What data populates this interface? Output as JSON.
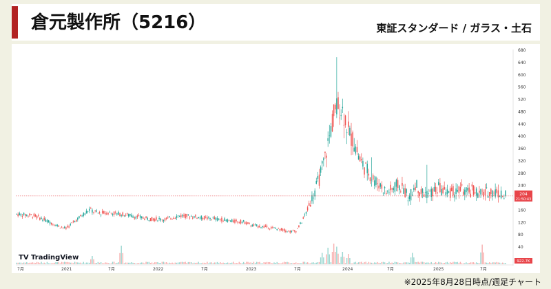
{
  "header": {
    "title": "倉元製作所（5216）",
    "market": "東証スタンダード / ガラス・土石"
  },
  "footer": {
    "note": "※2025年8月28日時点/週足チャート"
  },
  "watermark": {
    "label": "TradingView"
  },
  "colors": {
    "up": "#26a69a",
    "down": "#ef5350",
    "accent": "#b22222",
    "price_tag": "#e8454a"
  },
  "chart_data": {
    "type": "candlestick",
    "title": "",
    "xlabel": "",
    "ylabel": "",
    "ylim": [
      0,
      680
    ],
    "yticks": [
      680,
      640,
      600,
      560,
      520,
      480,
      440,
      400,
      360,
      320,
      280,
      240,
      200,
      160,
      120,
      80,
      40
    ],
    "x_tick_labels": [
      "7月",
      "2021",
      "7月",
      "2022",
      "7月",
      "2023",
      "7月",
      "2024",
      "7月",
      "2025",
      "7月"
    ],
    "last_price": {
      "value": 204,
      "countdown": "21:50:43"
    },
    "volume_label": "922.7K",
    "grid": false,
    "weeks": 264,
    "anchors": [
      [
        0,
        145
      ],
      [
        12,
        140
      ],
      [
        20,
        125
      ],
      [
        28,
        108
      ],
      [
        34,
        98
      ],
      [
        42,
        130
      ],
      [
        50,
        160
      ],
      [
        56,
        148
      ],
      [
        64,
        150
      ],
      [
        76,
        142
      ],
      [
        90,
        130
      ],
      [
        102,
        128
      ],
      [
        112,
        140
      ],
      [
        120,
        138
      ],
      [
        130,
        132
      ],
      [
        140,
        128
      ],
      [
        148,
        122
      ],
      [
        156,
        120
      ],
      [
        162,
        108
      ],
      [
        172,
        103
      ],
      [
        182,
        95
      ],
      [
        188,
        88
      ],
      [
        192,
        90
      ],
      [
        196,
        120
      ],
      [
        200,
        160
      ],
      [
        204,
        210
      ],
      [
        208,
        260
      ],
      [
        212,
        330
      ],
      [
        216,
        420
      ],
      [
        218,
        470
      ],
      [
        222,
        500
      ],
      [
        226,
        460
      ],
      [
        228,
        410
      ],
      [
        232,
        380
      ],
      [
        236,
        320
      ],
      [
        242,
        280
      ],
      [
        246,
        255
      ],
      [
        250,
        240
      ],
      [
        254,
        215
      ],
      [
        258,
        225
      ],
      [
        262,
        240
      ],
      [
        266,
        225
      ],
      [
        270,
        195
      ],
      [
        274,
        245
      ],
      [
        278,
        215
      ],
      [
        284,
        210
      ],
      [
        290,
        230
      ],
      [
        296,
        215
      ],
      [
        302,
        218
      ],
      [
        306,
        225
      ],
      [
        310,
        212
      ],
      [
        314,
        225
      ],
      [
        318,
        210
      ],
      [
        322,
        212
      ],
      [
        326,
        220
      ],
      [
        330,
        218
      ],
      [
        334,
        205
      ],
      [
        336,
        204
      ]
    ],
    "spikes": [
      [
        220,
        655
      ],
      [
        224,
        520
      ],
      [
        244,
        330
      ],
      [
        282,
        305
      ]
    ],
    "volume_spikes": [
      [
        52,
        0.4
      ],
      [
        72,
        0.9
      ],
      [
        210,
        0.55
      ],
      [
        214,
        0.8
      ],
      [
        218,
        1.0
      ],
      [
        220,
        0.85
      ],
      [
        224,
        0.6
      ],
      [
        228,
        0.5
      ],
      [
        272,
        0.55
      ],
      [
        320,
        0.95
      ]
    ]
  }
}
